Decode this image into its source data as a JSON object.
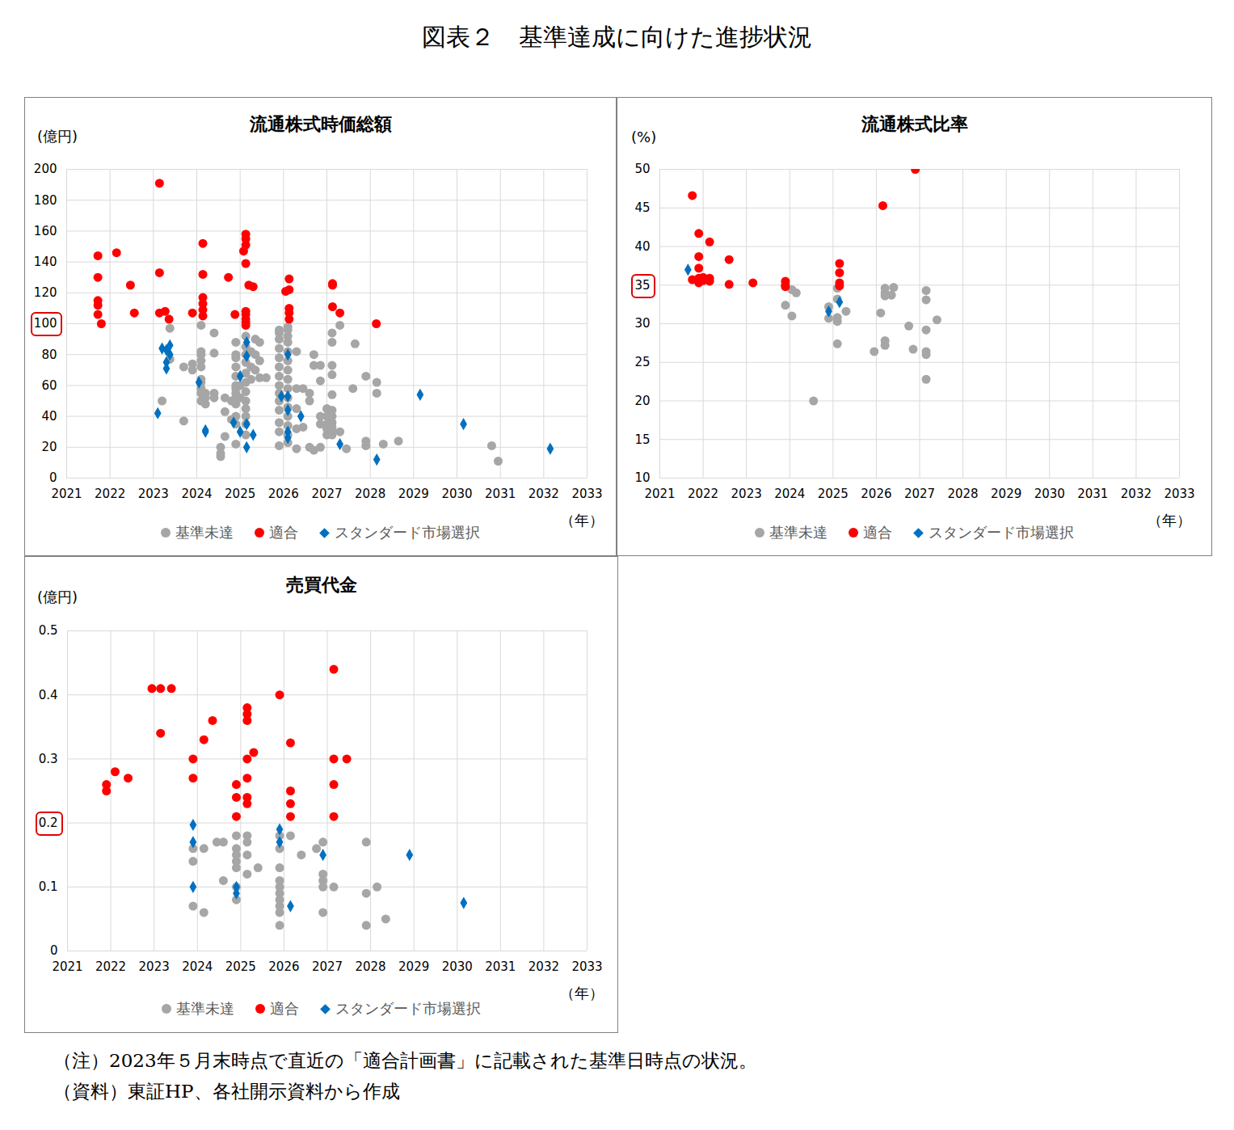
{
  "title": "図表２　基準達成に向けた進捗状況",
  "notes": [
    "（注）2023年５月末時点で直近の「適合計画書」に記載された基準日時点の状況。",
    "（資料）東証HP、各社開示資料から作成"
  ],
  "chart_data": [
    {
      "type": "scatter",
      "title": "流通株式時価総額",
      "ylabel": "(億円)",
      "xlabel": "（年）",
      "xlim": [
        2021,
        2033
      ],
      "xticks": [
        2021,
        2022,
        2023,
        2024,
        2025,
        2026,
        2027,
        2028,
        2029,
        2030,
        2031,
        2032,
        2033
      ],
      "ylim": [
        0,
        200
      ],
      "yticks": [
        0,
        20,
        40,
        60,
        80,
        100,
        120,
        140,
        160,
        180,
        200
      ],
      "highlight_tick": 100,
      "grid": true,
      "legend": "bottom",
      "series": [
        {
          "name": "基準未達",
          "color": "#a6a6a6",
          "marker": "circle",
          "x": [
            2023.38,
            2023.38,
            2023.2,
            2023.7,
            2023.7,
            2023.9,
            2023.9,
            2024.1,
            2024.1,
            2024.1,
            2024.1,
            2024.1,
            2024.1,
            2024.1,
            2024.1,
            2024.1,
            2024.1,
            2024.2,
            2024.2,
            2024.2,
            2024.4,
            2024.4,
            2024.4,
            2024.4,
            2024.55,
            2024.55,
            2024.55,
            2024.65,
            2024.65,
            2024.65,
            2024.8,
            2024.8,
            2024.9,
            2024.9,
            2024.9,
            2024.9,
            2024.9,
            2024.9,
            2024.9,
            2024.9,
            2024.9,
            2024.9,
            2024.9,
            2024.9,
            2024.9,
            2025.0,
            2025.0,
            2025.13,
            2025.13,
            2025.13,
            2025.13,
            2025.13,
            2025.13,
            2025.13,
            2025.13,
            2025.13,
            2025.13,
            2025.13,
            2025.13,
            2025.25,
            2025.25,
            2025.25,
            2025.35,
            2025.35,
            2025.35,
            2025.45,
            2025.45,
            2025.45,
            2025.6,
            2025.9,
            2025.9,
            2025.9,
            2025.9,
            2025.9,
            2025.9,
            2025.9,
            2025.9,
            2025.9,
            2025.9,
            2025.9,
            2025.9,
            2025.9,
            2025.9,
            2026.1,
            2026.1,
            2026.1,
            2026.1,
            2026.1,
            2026.1,
            2026.1,
            2026.1,
            2026.1,
            2026.1,
            2026.1,
            2026.1,
            2026.1,
            2026.1,
            2026.1,
            2026.3,
            2026.3,
            2026.3,
            2026.3,
            2026.3,
            2026.45,
            2026.45,
            2026.6,
            2026.6,
            2026.6,
            2026.7,
            2026.7,
            2026.7,
            2026.85,
            2026.85,
            2026.85,
            2026.85,
            2026.85,
            2027.0,
            2027.0,
            2027.0,
            2027.0,
            2027.0,
            2027.12,
            2027.12,
            2027.12,
            2027.12,
            2027.12,
            2027.12,
            2027.12,
            2027.12,
            2027.12,
            2027.12,
            2027.12,
            2027.3,
            2027.3,
            2027.45,
            2027.6,
            2027.65,
            2027.9,
            2027.9,
            2027.9,
            2028.15,
            2028.15,
            2028.3,
            2028.65,
            2030.8,
            2030.95
          ],
          "values": [
            97,
            77,
            50,
            37,
            72,
            74,
            70,
            99,
            82,
            80,
            76,
            72,
            64,
            62,
            58,
            55,
            50,
            52,
            55,
            48,
            94,
            81,
            55,
            52,
            20,
            16,
            14,
            27,
            43,
            52,
            50,
            38,
            88,
            80,
            78,
            72,
            66,
            60,
            58,
            55,
            52,
            48,
            40,
            35,
            22,
            60,
            52,
            92,
            85,
            80,
            75,
            68,
            62,
            56,
            50,
            45,
            40,
            35,
            28,
            82,
            72,
            64,
            90,
            80,
            70,
            88,
            76,
            65,
            65,
            96,
            94,
            90,
            84,
            78,
            72,
            66,
            60,
            55,
            50,
            44,
            36,
            30,
            21,
            98,
            96,
            92,
            88,
            82,
            76,
            70,
            64,
            58,
            52,
            46,
            40,
            34,
            28,
            23,
            82,
            58,
            45,
            32,
            19,
            58,
            33,
            55,
            50,
            20,
            80,
            73,
            18,
            73,
            63,
            40,
            35,
            20,
            45,
            40,
            35,
            32,
            28,
            94,
            88,
            73,
            67,
            54,
            44,
            40,
            36,
            33,
            30,
            28,
            99,
            30,
            19,
            58,
            87,
            66,
            24,
            21,
            62,
            55,
            22,
            24,
            21,
            11
          ]
        },
        {
          "name": "適合",
          "color": "#ff0000",
          "marker": "circle",
          "x": [
            2021.72,
            2021.72,
            2021.72,
            2021.72,
            2021.72,
            2021.8,
            2022.15,
            2022.47,
            2022.56,
            2023.14,
            2023.14,
            2023.14,
            2023.27,
            2023.36,
            2023.9,
            2024.14,
            2024.14,
            2024.14,
            2024.14,
            2024.14,
            2024.14,
            2024.73,
            2024.88,
            2025.13,
            2025.13,
            2025.13,
            2025.08,
            2025.13,
            2025.2,
            2025.3,
            2025.13,
            2025.13,
            2025.13,
            2025.13,
            2025.13,
            2026.13,
            2026.05,
            2026.13,
            2026.13,
            2026.13,
            2026.13,
            2027.13,
            2027.13,
            2027.13,
            2027.3,
            2028.14
          ],
          "values": [
            144,
            130,
            115,
            112,
            106,
            100,
            146,
            125,
            107,
            191,
            133,
            107,
            108,
            103,
            107,
            152,
            132,
            117,
            113,
            109,
            105,
            130,
            106,
            158,
            155,
            151,
            147,
            139,
            125,
            124,
            108,
            106,
            103,
            101,
            99,
            129,
            121,
            122,
            110,
            107,
            103,
            126,
            125,
            111,
            107,
            100
          ]
        },
        {
          "name": "スタンダード市場選択",
          "color": "#0070c0",
          "marker": "diamond",
          "x": [
            2023.1,
            2023.2,
            2023.3,
            2023.3,
            2023.3,
            2023.38,
            2023.38,
            2024.05,
            2024.2,
            2024.2,
            2024.85,
            2025.0,
            2025.0,
            2025.15,
            2025.15,
            2025.15,
            2025.15,
            2025.3,
            2025.95,
            2026.1,
            2026.1,
            2026.1,
            2026.1,
            2026.1,
            2026.4,
            2027.3,
            2028.15,
            2029.15,
            2030.15,
            2032.15
          ],
          "values": [
            42,
            84,
            71,
            75,
            83,
            86,
            80,
            62,
            30,
            31,
            36,
            66,
            30,
            88,
            79,
            35,
            20,
            28,
            53,
            80,
            53,
            44,
            30,
            26,
            40,
            22,
            12,
            54,
            35,
            19
          ]
        }
      ]
    },
    {
      "type": "scatter",
      "title": "流通株式比率",
      "ylabel": "(%)",
      "xlabel": "（年）",
      "xlim": [
        2021,
        2033
      ],
      "xticks": [
        2021,
        2022,
        2023,
        2024,
        2025,
        2026,
        2027,
        2028,
        2029,
        2030,
        2031,
        2032,
        2033
      ],
      "ylim": [
        10,
        50
      ],
      "yticks": [
        10,
        15,
        20,
        25,
        30,
        35,
        40,
        45,
        50
      ],
      "highlight_tick": 35,
      "grid": true,
      "legend": "bottom",
      "series": [
        {
          "name": "基準未達",
          "color": "#a6a6a6",
          "marker": "circle",
          "x": [
            2023.9,
            2024.05,
            2024.05,
            2024.15,
            2024.55,
            2024.9,
            2024.9,
            2025.1,
            2025.1,
            2025.1,
            2025.1,
            2025.1,
            2025.3,
            2025.95,
            2026.1,
            2026.2,
            2026.2,
            2026.2,
            2026.2,
            2026.2,
            2026.35,
            2026.4,
            2026.75,
            2026.85,
            2027.15,
            2027.15,
            2027.15,
            2027.15,
            2027.15,
            2027.15,
            2027.4
          ],
          "values": [
            32.4,
            31.0,
            34.4,
            34.0,
            20.0,
            32.2,
            30.7,
            34.6,
            33.2,
            30.8,
            27.4,
            30.3,
            31.6,
            26.4,
            31.4,
            34.6,
            34.0,
            33.6,
            27.8,
            27.2,
            33.7,
            34.7,
            29.7,
            26.7,
            34.3,
            33.1,
            29.2,
            26.4,
            26.0,
            22.8,
            30.5
          ]
        },
        {
          "name": "適合",
          "color": "#ff0000",
          "marker": "circle",
          "x": [
            2021.75,
            2021.75,
            2021.9,
            2021.9,
            2021.9,
            2021.9,
            2021.9,
            2022.0,
            2022.0,
            2022.15,
            2022.15,
            2022.15,
            2022.6,
            2022.6,
            2023.15,
            2023.9,
            2023.9,
            2023.9,
            2025.15,
            2025.15,
            2025.15,
            2025.15,
            2026.15,
            2026.9
          ],
          "values": [
            46.6,
            35.7,
            41.7,
            38.7,
            37.2,
            35.9,
            35.3,
            36.0,
            35.6,
            40.6,
            35.9,
            35.5,
            38.3,
            35.1,
            35.3,
            35.5,
            35.0,
            34.8,
            37.8,
            36.6,
            35.3,
            34.9,
            45.3,
            50.0
          ]
        },
        {
          "name": "スタンダード市場選択",
          "color": "#0070c0",
          "marker": "diamond",
          "x": [
            2021.65,
            2024.9,
            2025.15
          ],
          "values": [
            37.0,
            31.6,
            32.8
          ]
        }
      ]
    },
    {
      "type": "scatter",
      "title": "売買代金",
      "ylabel": "(億円)",
      "xlabel": "（年）",
      "xlim": [
        2021,
        2033
      ],
      "xticks": [
        2021,
        2022,
        2023,
        2024,
        2025,
        2026,
        2027,
        2028,
        2029,
        2030,
        2031,
        2032,
        2033
      ],
      "ylim": [
        0,
        0.5
      ],
      "yticks": [
        0,
        0.1,
        0.2,
        0.3,
        0.4,
        0.5
      ],
      "highlight_tick": 0.2,
      "grid": true,
      "legend": "bottom",
      "series": [
        {
          "name": "基準未達",
          "color": "#a6a6a6",
          "marker": "circle",
          "x": [
            2023.9,
            2023.9,
            2023.9,
            2024.15,
            2024.15,
            2024.45,
            2024.6,
            2024.6,
            2024.9,
            2024.9,
            2024.9,
            2024.9,
            2024.9,
            2024.9,
            2024.9,
            2025.15,
            2025.15,
            2025.15,
            2025.15,
            2025.4,
            2025.9,
            2025.9,
            2025.9,
            2025.9,
            2025.9,
            2025.9,
            2025.9,
            2025.9,
            2025.9,
            2025.9,
            2026.15,
            2026.4,
            2026.75,
            2026.9,
            2026.9,
            2026.9,
            2026.9,
            2026.9,
            2027.15,
            2027.9,
            2027.9,
            2027.9,
            2028.15,
            2028.35
          ],
          "values": [
            0.16,
            0.14,
            0.07,
            0.16,
            0.06,
            0.17,
            0.17,
            0.11,
            0.18,
            0.16,
            0.15,
            0.14,
            0.13,
            0.1,
            0.08,
            0.18,
            0.17,
            0.15,
            0.12,
            0.13,
            0.18,
            0.16,
            0.13,
            0.11,
            0.1,
            0.09,
            0.08,
            0.07,
            0.06,
            0.04,
            0.18,
            0.15,
            0.16,
            0.17,
            0.12,
            0.11,
            0.1,
            0.06,
            0.1,
            0.17,
            0.09,
            0.04,
            0.1,
            0.05
          ]
        },
        {
          "name": "適合",
          "color": "#ff0000",
          "marker": "circle",
          "x": [
            2021.9,
            2021.9,
            2022.1,
            2022.4,
            2022.95,
            2023.15,
            2023.15,
            2023.4,
            2023.9,
            2023.9,
            2024.15,
            2024.35,
            2024.9,
            2024.9,
            2024.9,
            2025.15,
            2025.15,
            2025.15,
            2025.15,
            2025.15,
            2025.15,
            2025.15,
            2025.3,
            2025.9,
            2026.15,
            2026.15,
            2026.15,
            2026.15,
            2027.15,
            2027.15,
            2027.15,
            2027.15,
            2027.45
          ],
          "values": [
            0.26,
            0.25,
            0.28,
            0.27,
            0.41,
            0.41,
            0.34,
            0.41,
            0.3,
            0.27,
            0.33,
            0.36,
            0.26,
            0.24,
            0.21,
            0.38,
            0.37,
            0.36,
            0.3,
            0.27,
            0.24,
            0.23,
            0.31,
            0.4,
            0.325,
            0.25,
            0.23,
            0.21,
            0.44,
            0.3,
            0.26,
            0.21,
            0.3
          ]
        },
        {
          "name": "スタンダード市場選択",
          "color": "#0070c0",
          "marker": "diamond",
          "x": [
            2023.9,
            2023.9,
            2023.9,
            2024.9,
            2024.9,
            2025.9,
            2025.9,
            2026.15,
            2026.9,
            2028.9,
            2030.15
          ],
          "values": [
            0.197,
            0.17,
            0.1,
            0.1,
            0.09,
            0.19,
            0.17,
            0.07,
            0.15,
            0.15,
            0.075
          ]
        }
      ]
    }
  ]
}
